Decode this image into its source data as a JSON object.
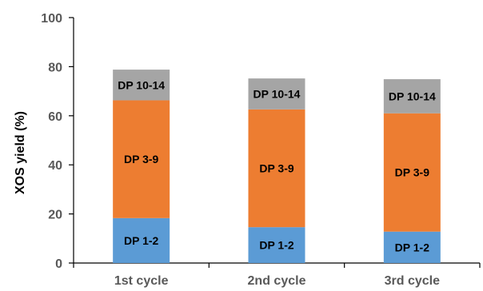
{
  "chart_data": {
    "type": "bar",
    "stacked": true,
    "categories": [
      "1st cycle",
      "2nd cycle",
      "3rd cycle"
    ],
    "series": [
      {
        "name": "DP 1-2",
        "values": [
          18.3,
          14.6,
          12.8
        ],
        "color": "#5B9BD5"
      },
      {
        "name": "DP 3-9",
        "values": [
          48.0,
          48.0,
          48.2
        ],
        "color": "#ED7D31"
      },
      {
        "name": "DP 10-14",
        "values": [
          12.5,
          12.6,
          13.9
        ],
        "color": "#A5A5A5"
      }
    ],
    "title": "",
    "xlabel": "",
    "ylabel": "XOS yield (%)",
    "ylim": [
      0,
      100
    ],
    "yticks": [
      "0",
      "20",
      "40",
      "60",
      "80",
      "100"
    ],
    "grid": false,
    "legend": "none"
  }
}
